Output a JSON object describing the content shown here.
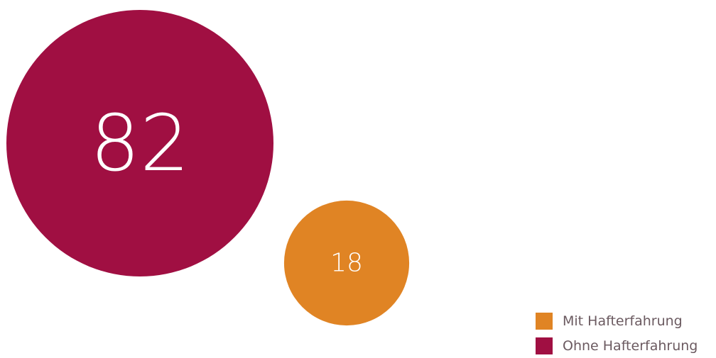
{
  "chart_data": {
    "type": "bubble",
    "series": [
      {
        "name": "Ohne Hafterfahrung",
        "value": 82,
        "label": "82",
        "color": "#A00F42"
      },
      {
        "name": "Mit Hafterfahrung",
        "value": 18,
        "label": "18",
        "color": "#E08424"
      }
    ],
    "legend": {
      "placement": "bottom-right",
      "entries": [
        {
          "label": "Mit Hafterfahrung",
          "color": "#E08424"
        },
        {
          "label": "Ohne Hafterfahrung",
          "color": "#A00F42"
        }
      ]
    }
  }
}
